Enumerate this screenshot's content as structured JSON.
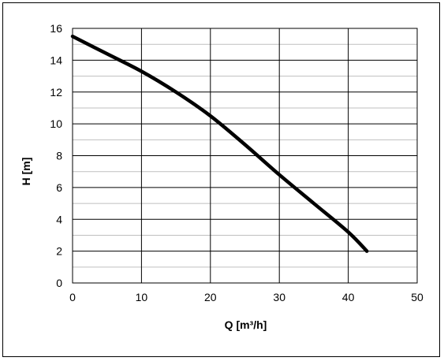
{
  "chart_data": {
    "type": "line",
    "title": "",
    "xlabel": "Q [m³/h]",
    "ylabel": "H [m]",
    "xlim": [
      0,
      50
    ],
    "ylim": [
      0,
      16
    ],
    "xticks": [
      0,
      10,
      20,
      30,
      40,
      50
    ],
    "yticks": [
      0,
      2,
      4,
      6,
      8,
      10,
      12,
      14,
      16
    ],
    "grid": "major and minor",
    "legend": "none",
    "colors": {
      "line": "#000000",
      "grid": "#000000",
      "minor_grid": "#bfbfbf"
    },
    "series": [
      {
        "x": [
          0,
          5,
          10,
          15,
          20,
          25,
          30,
          35,
          40,
          42.7
        ],
        "y": [
          15.5,
          14.4,
          13.3,
          12.0,
          10.5,
          8.7,
          6.8,
          5.0,
          3.2,
          2.0
        ]
      }
    ]
  }
}
